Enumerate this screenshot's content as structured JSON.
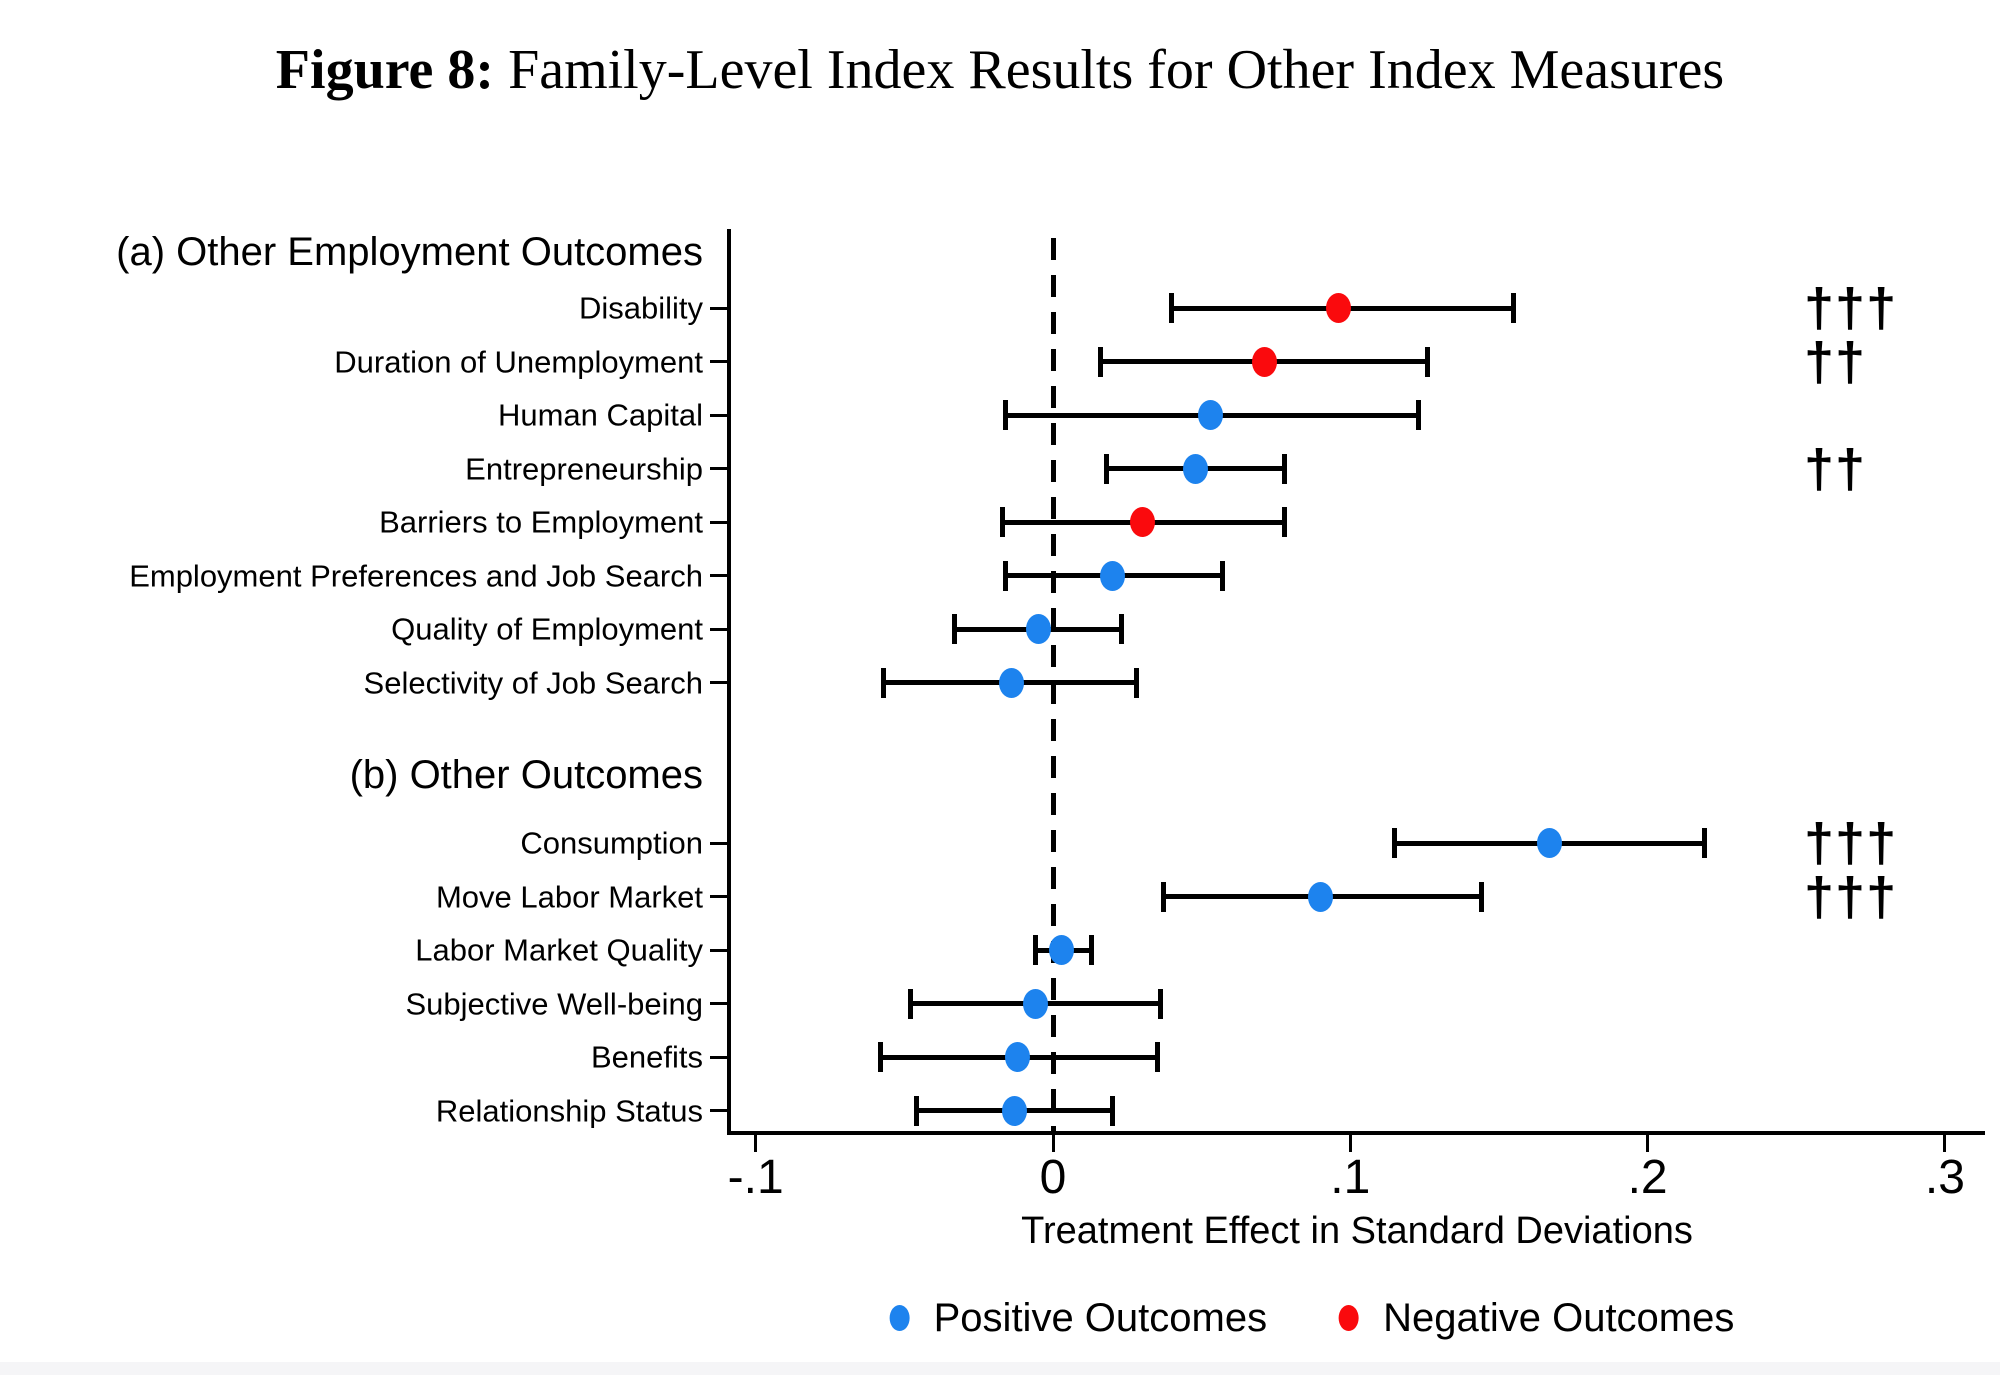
{
  "figure": {
    "label": "Figure 8:",
    "title": " Family-Level Index Results for Other Index Measures"
  },
  "chart_data": {
    "type": "scatter",
    "subtype": "coefficient-plot-with-confidence-intervals",
    "xlabel": "Treatment Effect in Standard Deviations",
    "x_ticks": [
      "-.1",
      "0",
      ".1",
      ".2",
      ".3"
    ],
    "x_tick_values": [
      -0.1,
      0,
      0.1,
      0.2,
      0.3
    ],
    "xlim": [
      -0.109,
      0.314
    ],
    "zero_reference_line": 0,
    "grid": false,
    "colors": {
      "positive": "#1d83ee",
      "negative": "#fa0a0d",
      "axis": "#000000"
    },
    "legend_position": "bottom",
    "legend": [
      {
        "label": "Positive Outcomes",
        "color": "#1d83ee"
      },
      {
        "label": "Negative Outcomes",
        "color": "#fa0a0d"
      }
    ],
    "groups": [
      {
        "header": "(a) Other Employment Outcomes",
        "rows": [
          {
            "label": "Disability",
            "estimate": 0.096,
            "ci_low": 0.04,
            "ci_high": 0.155,
            "outcome": "negative",
            "sig": "†††"
          },
          {
            "label": "Duration of Unemployment",
            "estimate": 0.071,
            "ci_low": 0.016,
            "ci_high": 0.126,
            "outcome": "negative",
            "sig": "††"
          },
          {
            "label": "Human Capital",
            "estimate": 0.053,
            "ci_low": -0.016,
            "ci_high": 0.123,
            "outcome": "positive",
            "sig": ""
          },
          {
            "label": "Entrepreneurship",
            "estimate": 0.048,
            "ci_low": 0.018,
            "ci_high": 0.078,
            "outcome": "positive",
            "sig": "††"
          },
          {
            "label": "Barriers to Employment",
            "estimate": 0.03,
            "ci_low": -0.017,
            "ci_high": 0.078,
            "outcome": "negative",
            "sig": ""
          },
          {
            "label": "Employment Preferences and Job Search",
            "estimate": 0.02,
            "ci_low": -0.016,
            "ci_high": 0.057,
            "outcome": "positive",
            "sig": ""
          },
          {
            "label": "Quality of Employment",
            "estimate": -0.005,
            "ci_low": -0.033,
            "ci_high": 0.023,
            "outcome": "positive",
            "sig": ""
          },
          {
            "label": "Selectivity of Job Search",
            "estimate": -0.014,
            "ci_low": -0.057,
            "ci_high": 0.028,
            "outcome": "positive",
            "sig": ""
          }
        ]
      },
      {
        "header": "(b) Other Outcomes",
        "rows": [
          {
            "label": "Consumption",
            "estimate": 0.167,
            "ci_low": 0.115,
            "ci_high": 0.219,
            "outcome": "positive",
            "sig": "†††"
          },
          {
            "label": "Move Labor Market",
            "estimate": 0.09,
            "ci_low": 0.037,
            "ci_high": 0.144,
            "outcome": "positive",
            "sig": "†††"
          },
          {
            "label": "Labor Market Quality",
            "estimate": 0.003,
            "ci_low": -0.006,
            "ci_high": 0.013,
            "outcome": "positive",
            "sig": ""
          },
          {
            "label": "Subjective Well-being",
            "estimate": -0.006,
            "ci_low": -0.048,
            "ci_high": 0.036,
            "outcome": "positive",
            "sig": ""
          },
          {
            "label": "Benefits",
            "estimate": -0.012,
            "ci_low": -0.058,
            "ci_high": 0.035,
            "outcome": "positive",
            "sig": ""
          },
          {
            "label": "Relationship Status",
            "estimate": -0.013,
            "ci_low": -0.046,
            "ci_high": 0.02,
            "outcome": "positive",
            "sig": ""
          }
        ]
      }
    ]
  }
}
